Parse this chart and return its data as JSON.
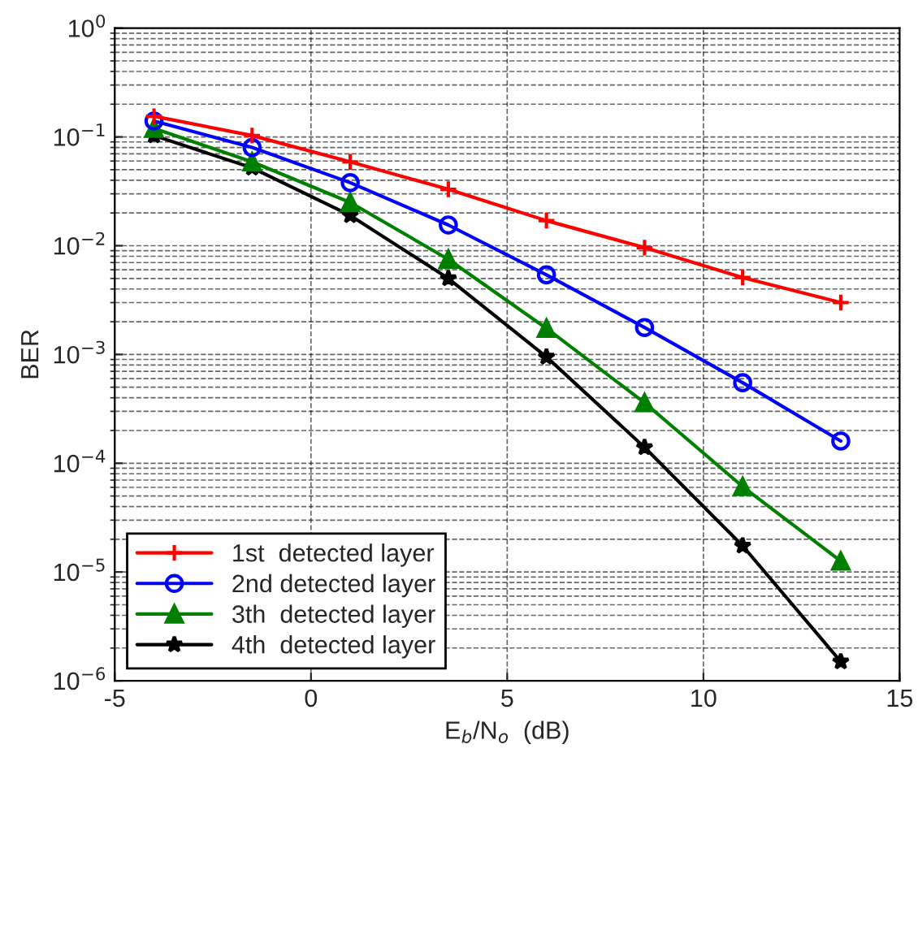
{
  "chart_data": {
    "type": "line",
    "xlabel": "E$_{b}$/N$_{o}$  (dB)",
    "ylabel": "BER",
    "x": [
      -4,
      -1.5,
      1,
      3.5,
      6,
      8.5,
      11,
      13.5
    ],
    "series": [
      {
        "name": "1st  detected layer",
        "color": "#ff0000",
        "marker": "cross",
        "values": [
          0.155,
          0.103,
          0.059,
          0.033,
          0.017,
          0.0096,
          0.0051,
          0.003
        ]
      },
      {
        "name": "2nd detected layer",
        "color": "#0000ff",
        "marker": "circle",
        "values": [
          0.14,
          0.08,
          0.038,
          0.0155,
          0.0054,
          0.00177,
          0.00055,
          0.00016
        ]
      },
      {
        "name": "3th  detected layer",
        "color": "#008000",
        "marker": "triangle",
        "values": [
          0.12,
          0.059,
          0.025,
          0.0075,
          0.00174,
          0.00036,
          6.1e-05,
          1.26e-05
        ]
      },
      {
        "name": "4th  detected layer",
        "color": "#000000",
        "marker": "star",
        "values": [
          0.103,
          0.052,
          0.019,
          0.005,
          0.00095,
          0.00014,
          1.74e-05,
          1.5e-06
        ]
      }
    ],
    "log": "y",
    "xlim": [
      -5,
      15
    ],
    "xticks": [
      -5,
      0,
      5,
      10,
      15
    ],
    "ylim": [
      1e-06,
      1
    ],
    "yticks": [
      {
        "value": 1e-06,
        "label": "10$^{−6}$"
      },
      {
        "value": 1e-05,
        "label": "10$^{−5}$"
      },
      {
        "value": 0.0001,
        "label": "10$^{−4}$"
      },
      {
        "value": 0.001,
        "label": "10$^{−3}$"
      },
      {
        "value": 0.01,
        "label": "10$^{−2}$"
      },
      {
        "value": 0.1,
        "label": "10$^{−1}$"
      },
      {
        "value": 1,
        "label": "10$^{0}$"
      }
    ],
    "grid": true,
    "legend": "bottom left",
    "line_style": "solid"
  }
}
